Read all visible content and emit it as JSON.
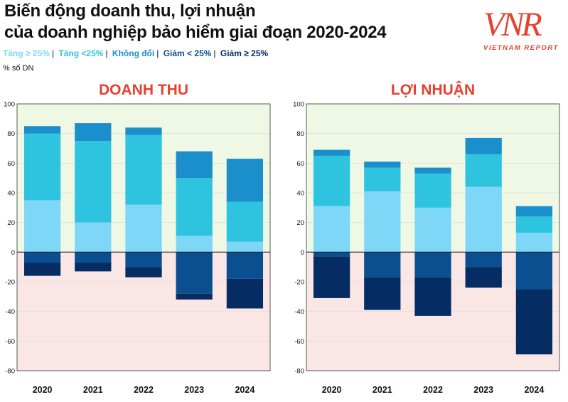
{
  "header": {
    "title_line1": "Biến động doanh thu, lợi nhuận",
    "title_line2": "của doanh nghiệp bảo hiểm giai đoạn 2020-2024",
    "unit": "% số DN",
    "legend": [
      {
        "label": "Tăng ≥ 25%",
        "color": "#7fd7f7"
      },
      {
        "label": "Tăng <25%",
        "color": "#2ec4e0"
      },
      {
        "label": "Không đổi",
        "color": "#1a8fcb"
      },
      {
        "label": "Giảm < 25%",
        "color": "#0a4f8f"
      },
      {
        "label": "Giảm ≥ 25%",
        "color": "#062d63"
      }
    ]
  },
  "logo": {
    "mark": "VNR",
    "text": "VIETNAM REPORT",
    "color": "#e8402f"
  },
  "colors": {
    "positive_bg": "#eef8e4",
    "negative_bg": "#fbe6e6",
    "panel_title": "#e8402f",
    "zero_line": "#222222"
  },
  "chart_data": [
    {
      "type": "bar",
      "stacked": true,
      "title": "DOANH THU",
      "categories": [
        "2020",
        "2021",
        "2022",
        "2023",
        "2024"
      ],
      "ylim": [
        -80,
        100
      ],
      "yticks": [
        100,
        80,
        60,
        40,
        20,
        0,
        -20,
        -40,
        -60,
        -80
      ],
      "series": [
        {
          "name": "Tăng ≥ 25%",
          "values": [
            35,
            20,
            32,
            11,
            7
          ]
        },
        {
          "name": "Tăng <25%",
          "values": [
            45,
            55,
            47,
            39,
            27
          ]
        },
        {
          "name": "Không đổi",
          "values": [
            5,
            12,
            5,
            18,
            29
          ]
        },
        {
          "name": "Giảm < 25%",
          "values": [
            -7,
            -7,
            -10,
            -28,
            -18
          ]
        },
        {
          "name": "Giảm ≥ 25%",
          "values": [
            -9,
            -6,
            -7,
            -4,
            -20
          ]
        }
      ]
    },
    {
      "type": "bar",
      "stacked": true,
      "title": "LỢI NHUẬN",
      "categories": [
        "2020",
        "2021",
        "2022",
        "2023",
        "2024"
      ],
      "ylim": [
        -80,
        100
      ],
      "yticks": [
        100,
        80,
        60,
        40,
        20,
        0,
        -20,
        -40,
        -60,
        -80
      ],
      "series": [
        {
          "name": "Tăng ≥ 25%",
          "values": [
            31,
            41,
            30,
            44,
            13
          ]
        },
        {
          "name": "Tăng <25%",
          "values": [
            34,
            16,
            23,
            22,
            11
          ]
        },
        {
          "name": "Không đổi",
          "values": [
            4,
            4,
            4,
            11,
            7
          ]
        },
        {
          "name": "Giảm < 25%",
          "values": [
            -3,
            -17,
            -17,
            -10,
            -25
          ]
        },
        {
          "name": "Giảm ≥ 25%",
          "values": [
            -28,
            -22,
            -26,
            -14,
            -44
          ]
        }
      ]
    }
  ]
}
